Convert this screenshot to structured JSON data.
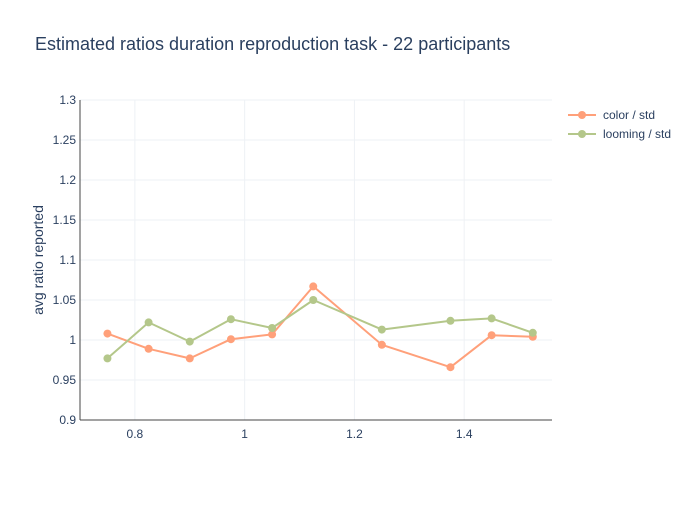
{
  "chart_data": {
    "type": "line",
    "title": "Estimated ratios duration reproduction task - 22 participants",
    "xlabel": "",
    "ylabel": "avg ratio reported",
    "xlim": [
      0.7,
      1.56
    ],
    "ylim": [
      0.9,
      1.3
    ],
    "xticks": [
      0.8,
      1,
      1.2,
      1.4
    ],
    "xtick_labels": [
      "0.8",
      "1",
      "1.2",
      "1.4"
    ],
    "yticks": [
      0.9,
      0.95,
      1,
      1.05,
      1.1,
      1.15,
      1.2,
      1.25,
      1.3
    ],
    "ytick_labels": [
      "0.9",
      "0.95",
      "1",
      "1.05",
      "1.1",
      "1.15",
      "1.2",
      "1.25",
      "1.3"
    ],
    "grid": true,
    "legend_position": "top-right",
    "series": [
      {
        "name": "color / std",
        "color": "#FFA07A",
        "x": [
          0.75,
          0.825,
          0.9,
          0.975,
          1.05,
          1.125,
          1.25,
          1.375,
          1.45,
          1.525
        ],
        "y": [
          1.008,
          0.989,
          0.977,
          1.001,
          1.007,
          1.067,
          0.994,
          0.966,
          1.006,
          1.004
        ]
      },
      {
        "name": "looming / std",
        "color": "#B4C78A",
        "x": [
          0.75,
          0.825,
          0.9,
          0.975,
          1.05,
          1.125,
          1.25,
          1.375,
          1.45,
          1.525
        ],
        "y": [
          0.977,
          1.022,
          0.998,
          1.026,
          1.015,
          1.05,
          1.013,
          1.024,
          1.027,
          1.009
        ]
      }
    ]
  }
}
